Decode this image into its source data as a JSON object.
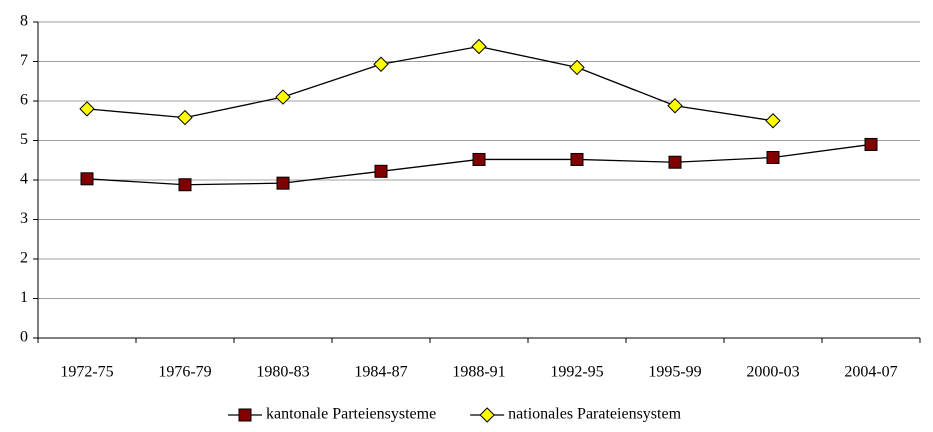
{
  "chart_data": {
    "type": "line",
    "categories": [
      "1972-75",
      "1976-79",
      "1980-83",
      "1984-87",
      "1988-91",
      "1992-95",
      "1995-99",
      "2000-03",
      "2004-07"
    ],
    "series": [
      {
        "name": "kantonale Parteiensysteme",
        "color": "#800000",
        "marker": "square",
        "values": [
          4.03,
          3.88,
          3.92,
          4.22,
          4.52,
          4.52,
          4.45,
          4.57,
          4.9
        ]
      },
      {
        "name": "nationales Parateiensystem",
        "color": "#ffff00",
        "marker": "diamond",
        "values": [
          5.8,
          5.58,
          6.1,
          6.93,
          7.38,
          6.85,
          5.88,
          5.5,
          null
        ]
      }
    ],
    "line_color": "#000000",
    "ylim": [
      0,
      8
    ],
    "yticks": [
      0,
      1,
      2,
      3,
      4,
      5,
      6,
      7,
      8
    ],
    "grid": true,
    "legend": "bottom"
  }
}
